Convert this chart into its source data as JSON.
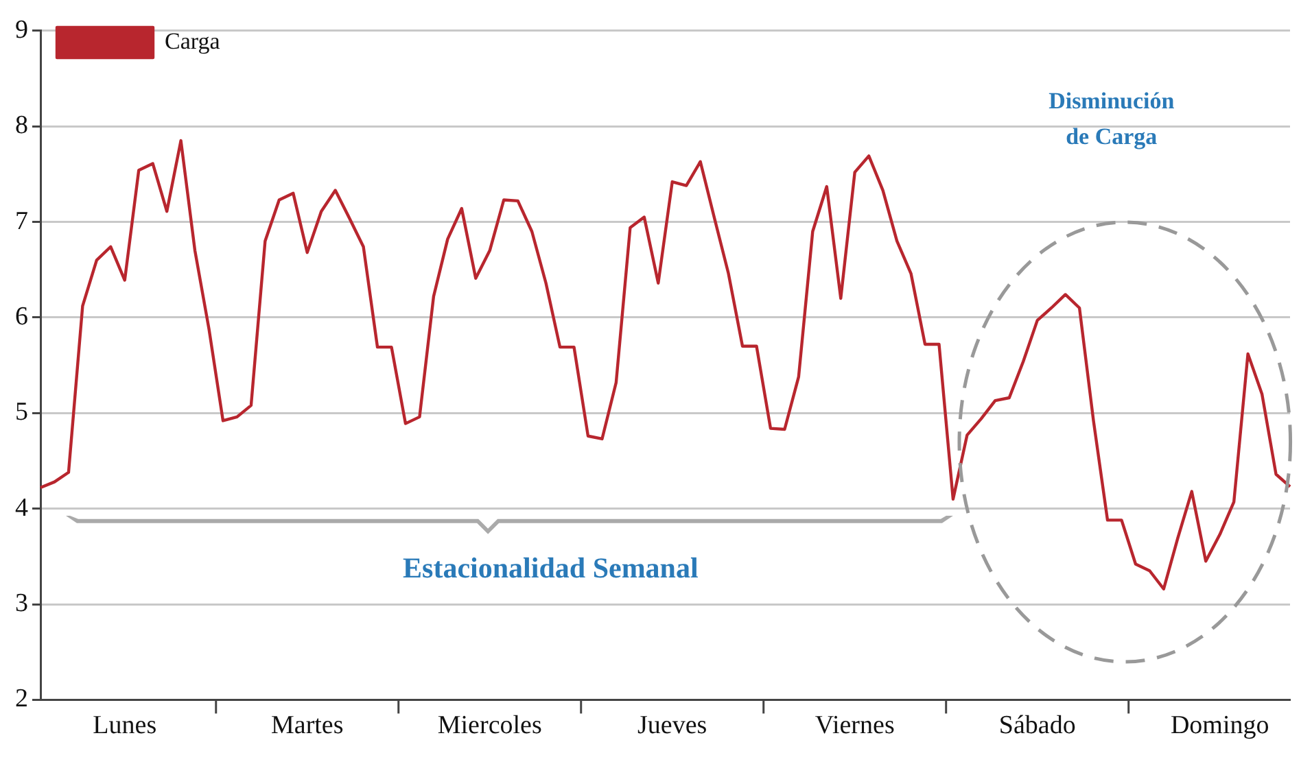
{
  "chart_data": {
    "type": "line",
    "legend": "top left",
    "grid": "y",
    "marker": "none",
    "line_style": "solid",
    "categories": [
      null,
      null,
      null,
      null,
      null,
      null,
      "Lunes",
      null,
      null,
      null,
      null,
      null,
      null,
      null,
      null,
      null,
      null,
      null,
      null,
      "Martes",
      null,
      null,
      null,
      null,
      null,
      null,
      null,
      null,
      null,
      null,
      null,
      null,
      "Miercoles",
      null,
      null,
      null,
      null,
      null,
      null,
      null,
      null,
      null,
      null,
      null,
      null,
      "Jueves",
      null,
      null,
      null,
      null,
      null,
      null,
      null,
      null,
      null,
      null,
      null,
      null,
      "Viernes",
      null,
      null,
      null,
      null,
      null,
      null,
      null,
      null,
      null,
      null,
      null,
      null,
      "Sábado",
      null,
      null,
      null,
      null,
      null,
      null,
      null,
      null,
      null,
      null,
      null,
      null,
      "Domingo",
      null,
      null,
      null,
      null,
      null
    ],
    "ylim": [
      2,
      9
    ],
    "yticks": [
      2,
      3,
      4,
      5,
      6,
      7,
      8,
      9
    ],
    "annotations": [
      "Estacionalidad Semanal",
      "Disminución de Carga"
    ],
    "series": [
      {
        "name": "Carga",
        "color": "#b8262e",
        "values": [
          4.22,
          4.28,
          4.38,
          6.12,
          6.6,
          6.74,
          6.39,
          7.54,
          7.61,
          7.11,
          7.85,
          6.7,
          5.88,
          4.92,
          4.96,
          5.08,
          6.8,
          7.23,
          7.3,
          6.68,
          7.11,
          7.33,
          7.04,
          6.74,
          5.69,
          5.69,
          4.89,
          4.96,
          6.22,
          6.82,
          7.14,
          6.41,
          6.7,
          7.23,
          7.22,
          6.9,
          6.36,
          5.69,
          5.69,
          4.76,
          4.73,
          5.32,
          6.94,
          7.05,
          6.36,
          7.42,
          7.38,
          7.63,
          7.04,
          6.46,
          5.7,
          5.7,
          4.84,
          4.83,
          5.38,
          6.9,
          7.37,
          6.2,
          7.52,
          7.69,
          7.33,
          6.8,
          6.46,
          5.72,
          5.72,
          4.1,
          4.77,
          4.94,
          5.13,
          5.16,
          5.54,
          5.97,
          6.1,
          6.24,
          6.1,
          4.92,
          3.88,
          3.88,
          3.42,
          3.35,
          3.16,
          3.69,
          4.18,
          3.45,
          3.73,
          4.07,
          5.62,
          5.2,
          4.36,
          4.23
        ]
      }
    ]
  }
}
